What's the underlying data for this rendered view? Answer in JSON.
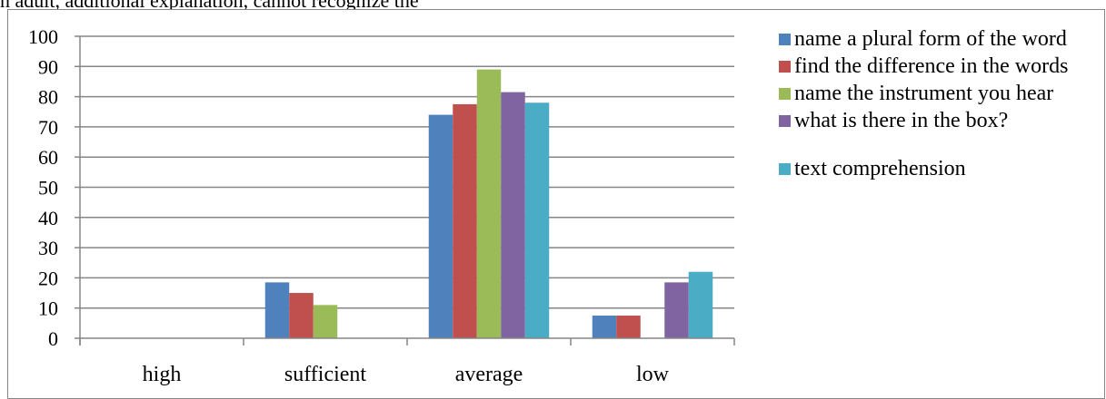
{
  "top_caption": "n adult, additional explanation, cannot recognize the",
  "chart_data": {
    "type": "bar",
    "categories": [
      "high",
      "sufficient",
      "average",
      "low"
    ],
    "series": [
      {
        "name": "name a plural form of the word",
        "color": "#4f81bd",
        "values": [
          0,
          18.5,
          74,
          7.5
        ]
      },
      {
        "name": "find the difference in the words",
        "color": "#c0504d",
        "values": [
          0,
          15,
          77.5,
          7.5
        ]
      },
      {
        "name": "name the instrument you hear",
        "color": "#9bbb59",
        "values": [
          0,
          11,
          89,
          0
        ]
      },
      {
        "name": "what is there in the box?",
        "color": "#8064a2",
        "values": [
          0,
          0,
          81.5,
          18.5
        ]
      },
      {
        "name": "text comprehension",
        "color": "#4bacc6",
        "values": [
          0,
          0,
          78,
          22
        ]
      }
    ],
    "ylim": [
      0,
      100
    ],
    "yticks": [
      0,
      10,
      20,
      30,
      40,
      50,
      60,
      70,
      80,
      90,
      100
    ],
    "grid": true,
    "legend_position": "right"
  }
}
